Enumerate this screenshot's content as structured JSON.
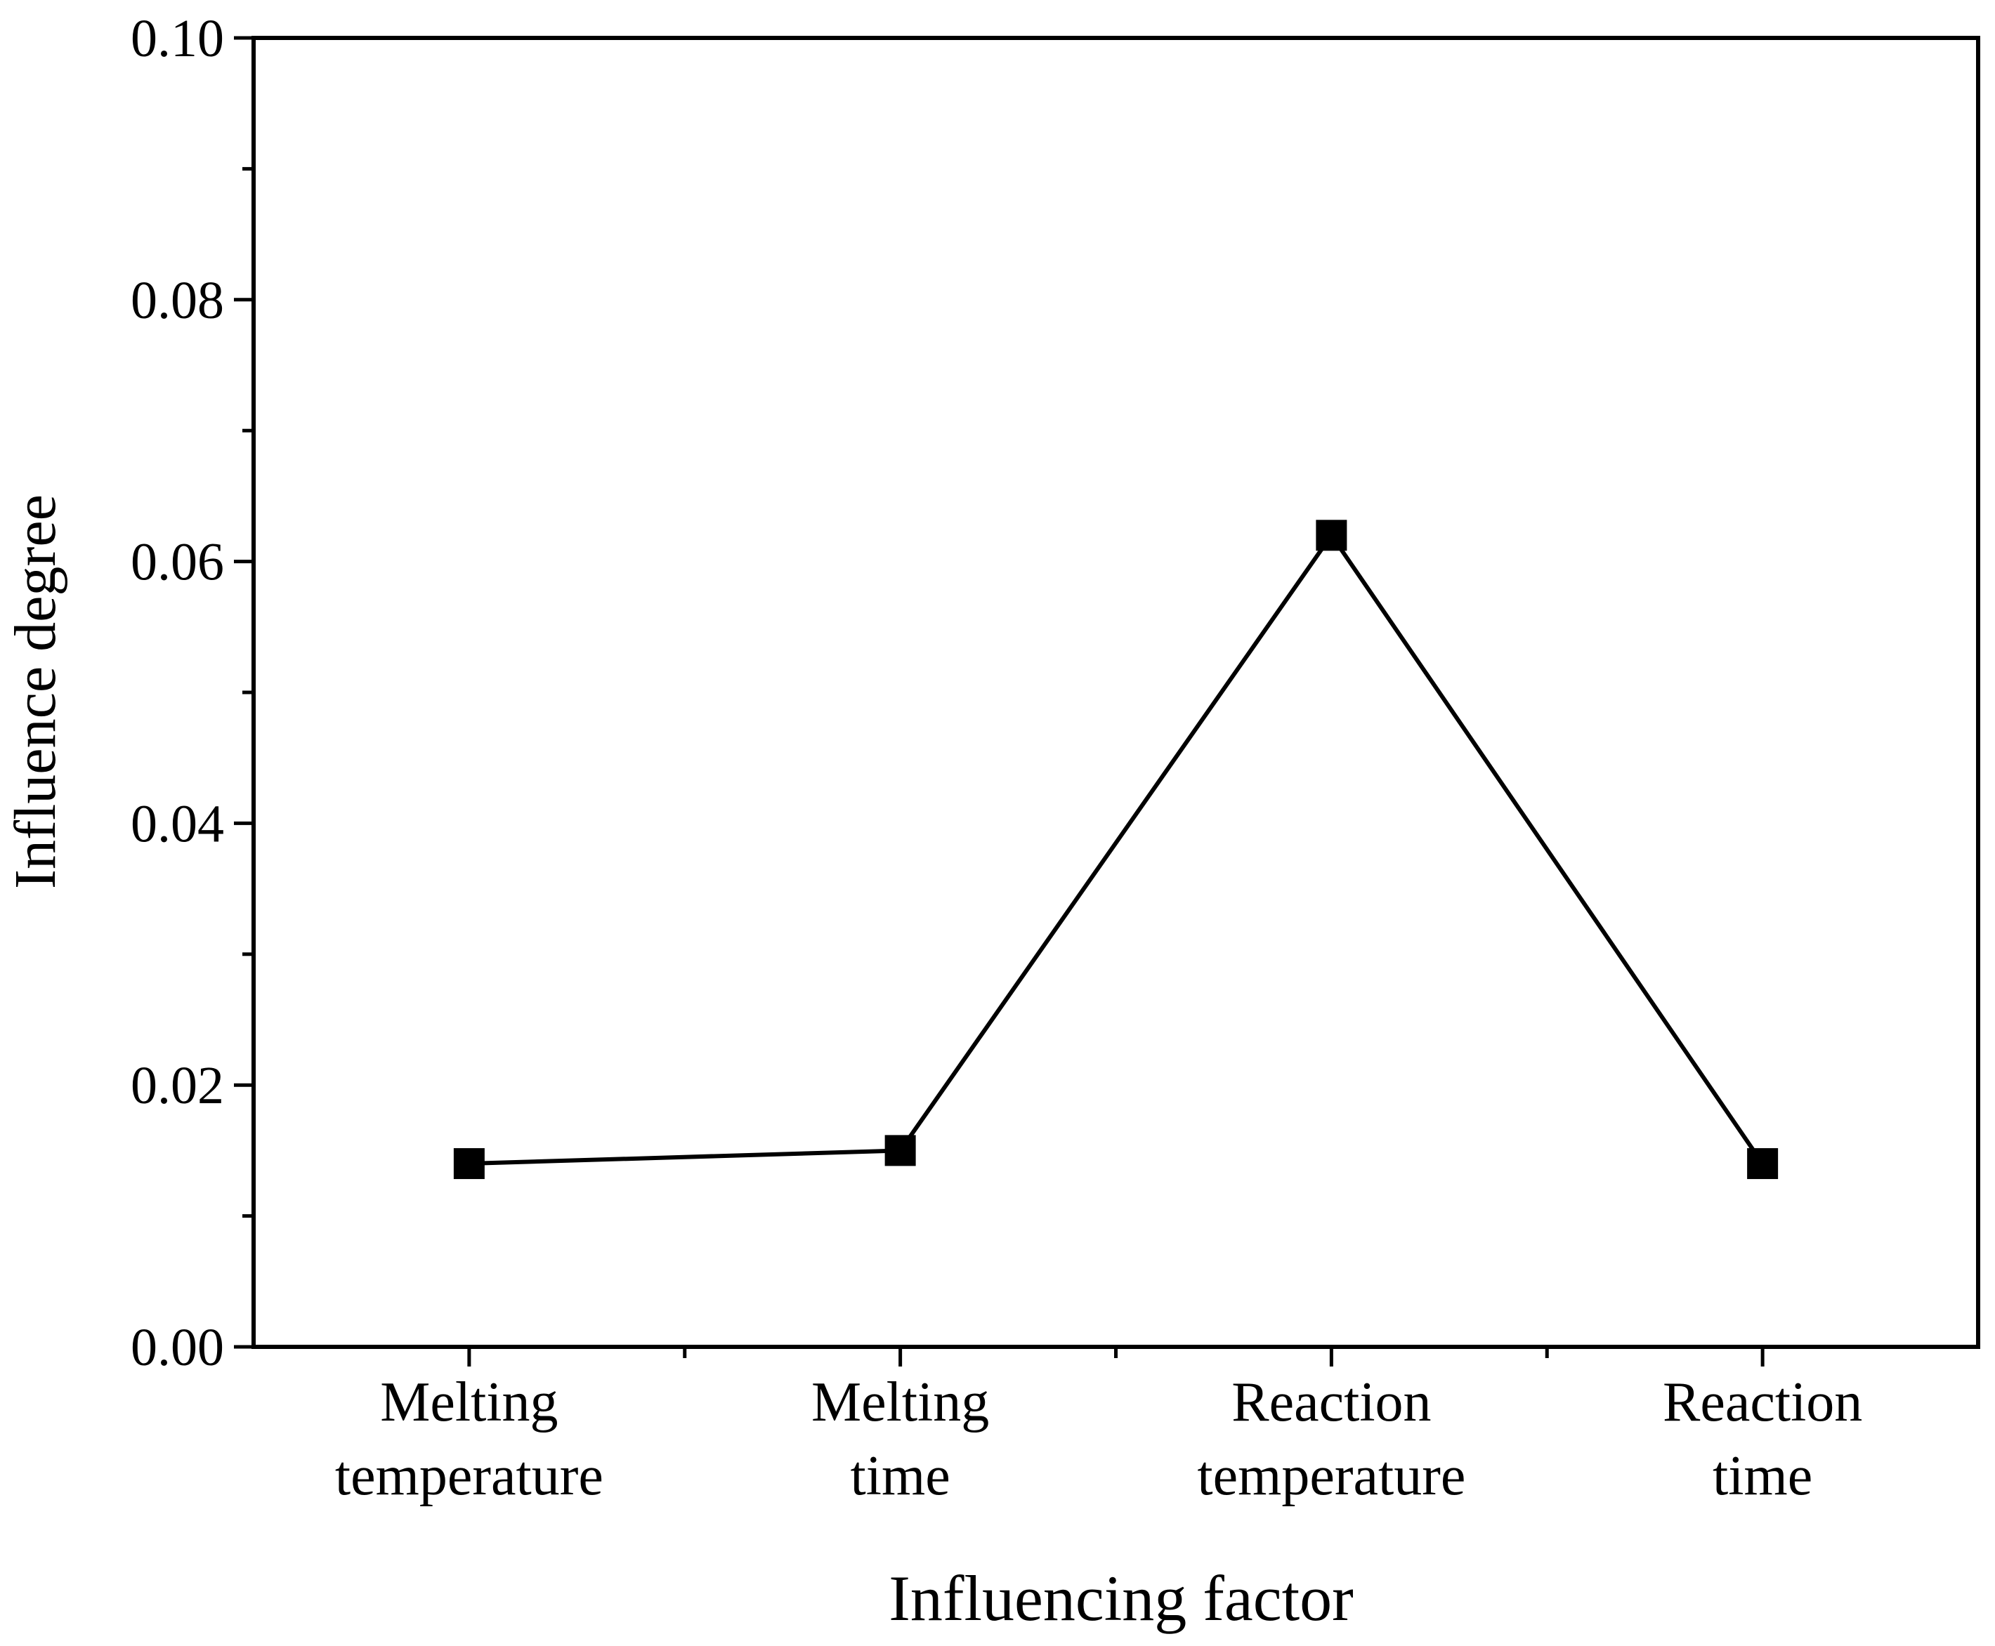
{
  "chart_data": {
    "type": "line",
    "title": "",
    "xlabel": "Influencing factor",
    "ylabel": "Influence degree",
    "categories": [
      [
        "Melting",
        "temperature"
      ],
      [
        "Melting",
        "time"
      ],
      [
        "Reaction",
        "temperature"
      ],
      [
        "Reaction",
        "time"
      ]
    ],
    "series": [
      {
        "name": "Influence degree",
        "values": [
          0.014,
          0.015,
          0.062,
          0.014
        ],
        "marker": "square",
        "color": "#000000"
      }
    ],
    "ylim": [
      0.0,
      0.1
    ],
    "y_major_ticks": [
      0.0,
      0.02,
      0.04,
      0.06,
      0.08,
      0.1
    ],
    "y_tick_labels": [
      "0.00",
      "0.02",
      "0.04",
      "0.06",
      "0.08",
      "0.10"
    ],
    "y_minor_ticks": [
      0.01,
      0.03,
      0.05,
      0.07,
      0.09
    ],
    "grid": false,
    "legend": "none"
  }
}
